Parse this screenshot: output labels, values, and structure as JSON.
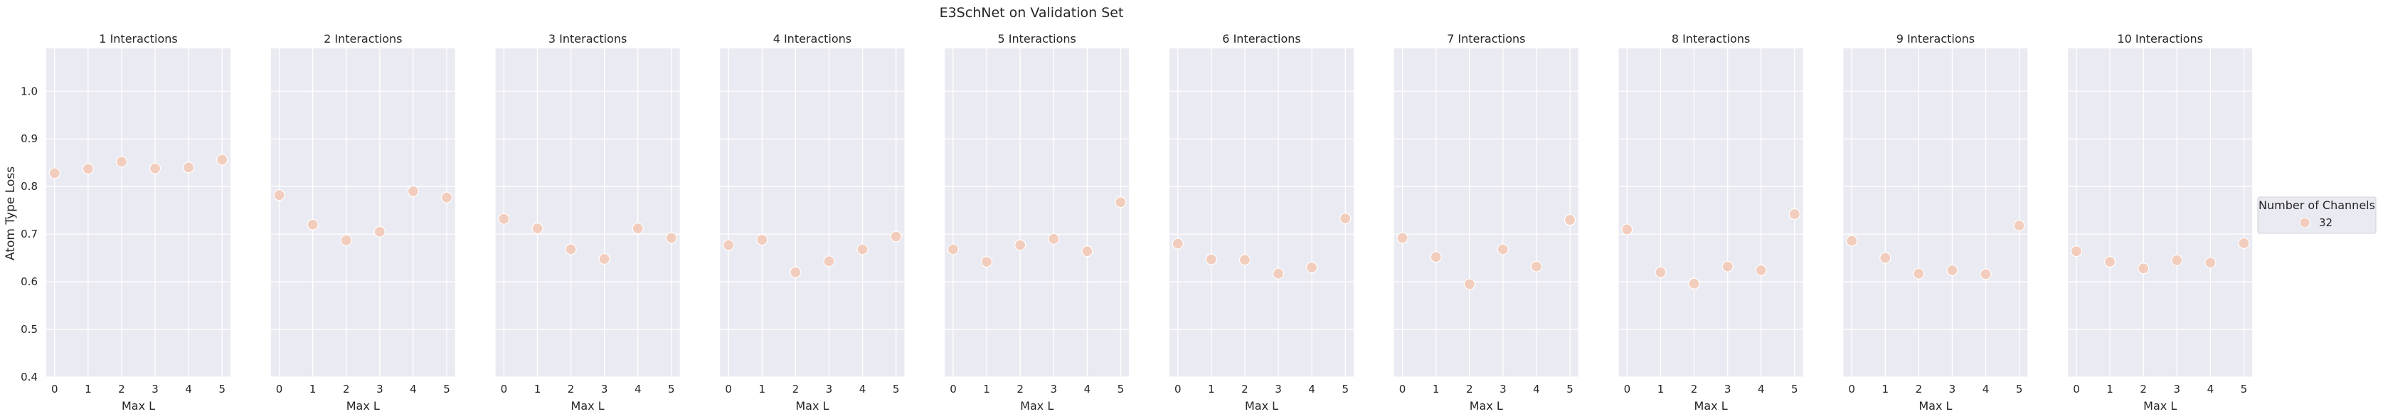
{
  "figure": {
    "title": "E3SchNet on Validation Set",
    "ylabel": "Atom Type Loss"
  },
  "legend": {
    "title": "Number of Channels",
    "entries": [
      {
        "label": "32",
        "color": "#f2cdbd"
      }
    ]
  },
  "colors": {
    "panel_bg": "#eaeaf2",
    "grid": "#ffffff",
    "marker": "#f2cdbd",
    "marker_edge": "#ffffff"
  },
  "chart_data": [
    {
      "type": "scatter",
      "title": "1 Interactions",
      "xlabel": "Max L",
      "ylabel": "Atom Type Loss",
      "xlim": [
        -0.25,
        5.25
      ],
      "ylim": [
        0.4,
        1.09
      ],
      "x": [
        0,
        1,
        2,
        3,
        4,
        5
      ],
      "y": [
        0.828,
        0.837,
        0.852,
        0.838,
        0.84,
        0.856
      ],
      "series_name": "32",
      "x_ticks": [
        "0",
        "1",
        "2",
        "3",
        "4",
        "5"
      ],
      "y_ticks": [
        "0.4",
        "0.5",
        "0.6",
        "0.7",
        "0.8",
        "0.9",
        "1.0"
      ],
      "grid": true
    },
    {
      "type": "scatter",
      "title": "2 Interactions",
      "xlabel": "Max L",
      "xlim": [
        -0.25,
        5.25
      ],
      "ylim": [
        0.4,
        1.09
      ],
      "x": [
        0,
        1,
        2,
        3,
        4,
        5
      ],
      "y": [
        0.782,
        0.72,
        0.687,
        0.705,
        0.79,
        0.777
      ],
      "series_name": "32",
      "x_ticks": [
        "0",
        "1",
        "2",
        "3",
        "4",
        "5"
      ],
      "grid": true
    },
    {
      "type": "scatter",
      "title": "3 Interactions",
      "xlabel": "Max L",
      "xlim": [
        -0.25,
        5.25
      ],
      "ylim": [
        0.4,
        1.09
      ],
      "x": [
        0,
        1,
        2,
        3,
        4,
        5
      ],
      "y": [
        0.732,
        0.712,
        0.668,
        0.648,
        0.712,
        0.692
      ],
      "series_name": "32",
      "x_ticks": [
        "0",
        "1",
        "2",
        "3",
        "4",
        "5"
      ],
      "grid": true
    },
    {
      "type": "scatter",
      "title": "4 Interactions",
      "xlabel": "Max L",
      "xlim": [
        -0.25,
        5.25
      ],
      "ylim": [
        0.4,
        1.09
      ],
      "x": [
        0,
        1,
        2,
        3,
        4,
        5
      ],
      "y": [
        0.677,
        0.688,
        0.62,
        0.643,
        0.668,
        0.695
      ],
      "series_name": "32",
      "x_ticks": [
        "0",
        "1",
        "2",
        "3",
        "4",
        "5"
      ],
      "grid": true
    },
    {
      "type": "scatter",
      "title": "5 Interactions",
      "xlabel": "Max L",
      "xlim": [
        -0.25,
        5.25
      ],
      "ylim": [
        0.4,
        1.09
      ],
      "x": [
        0,
        1,
        2,
        3,
        4,
        5
      ],
      "y": [
        0.668,
        0.642,
        0.677,
        0.69,
        0.664,
        0.767
      ],
      "series_name": "32",
      "x_ticks": [
        "0",
        "1",
        "2",
        "3",
        "4",
        "5"
      ],
      "grid": true
    },
    {
      "type": "scatter",
      "title": "6 Interactions",
      "xlabel": "Max L",
      "xlim": [
        -0.25,
        5.25
      ],
      "ylim": [
        0.4,
        1.09
      ],
      "x": [
        0,
        1,
        2,
        3,
        4,
        5
      ],
      "y": [
        0.68,
        0.647,
        0.646,
        0.617,
        0.63,
        0.733
      ],
      "series_name": "32",
      "x_ticks": [
        "0",
        "1",
        "2",
        "3",
        "4",
        "5"
      ],
      "grid": true
    },
    {
      "type": "scatter",
      "title": "7 Interactions",
      "xlabel": "Max L",
      "xlim": [
        -0.25,
        5.25
      ],
      "ylim": [
        0.4,
        1.09
      ],
      "x": [
        0,
        1,
        2,
        3,
        4,
        5
      ],
      "y": [
        0.692,
        0.652,
        0.595,
        0.668,
        0.632,
        0.73
      ],
      "series_name": "32",
      "x_ticks": [
        "0",
        "1",
        "2",
        "3",
        "4",
        "5"
      ],
      "grid": true
    },
    {
      "type": "scatter",
      "title": "8 Interactions",
      "xlabel": "Max L",
      "xlim": [
        -0.25,
        5.25
      ],
      "ylim": [
        0.4,
        1.09
      ],
      "x": [
        0,
        1,
        2,
        3,
        4,
        5
      ],
      "y": [
        0.71,
        0.62,
        0.596,
        0.632,
        0.624,
        0.742
      ],
      "series_name": "32",
      "x_ticks": [
        "0",
        "1",
        "2",
        "3",
        "4",
        "5"
      ],
      "grid": true
    },
    {
      "type": "scatter",
      "title": "9 Interactions",
      "xlabel": "Max L",
      "xlim": [
        -0.25,
        5.25
      ],
      "ylim": [
        0.4,
        1.09
      ],
      "x": [
        0,
        1,
        2,
        3,
        4,
        5
      ],
      "y": [
        0.686,
        0.65,
        0.617,
        0.624,
        0.616,
        0.718
      ],
      "series_name": "32",
      "x_ticks": [
        "0",
        "1",
        "2",
        "3",
        "4",
        "5"
      ],
      "grid": true
    },
    {
      "type": "scatter",
      "title": "10 Interactions",
      "xlabel": "Max L",
      "xlim": [
        -0.25,
        5.25
      ],
      "ylim": [
        0.4,
        1.09
      ],
      "x": [
        0,
        1,
        2,
        3,
        4,
        5
      ],
      "y": [
        0.664,
        0.642,
        0.628,
        0.645,
        0.64,
        0.681
      ],
      "series_name": "32",
      "x_ticks": [
        "0",
        "1",
        "2",
        "3",
        "4",
        "5"
      ],
      "grid": true
    }
  ]
}
